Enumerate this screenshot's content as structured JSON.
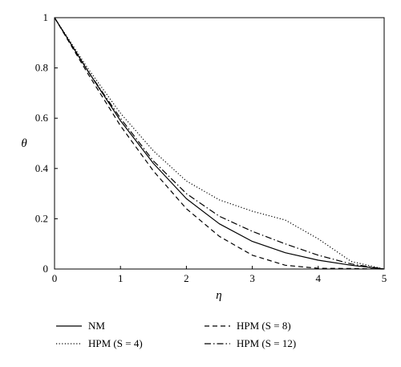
{
  "chart_data": {
    "type": "line",
    "xlabel": "η",
    "ylabel": "θ",
    "xlim": [
      0,
      5
    ],
    "ylim": [
      0,
      1
    ],
    "xticks": [
      "0",
      "1",
      "2",
      "3",
      "4",
      "5"
    ],
    "yticks": [
      "0",
      "0.2",
      "0.4",
      "0.6",
      "0.8",
      "1"
    ],
    "grid": false,
    "legend_position": "below",
    "series": [
      {
        "name": "NM",
        "style": "solid",
        "x": [
          0,
          0.5,
          1,
          1.5,
          2,
          2.5,
          3,
          3.5,
          4,
          4.5,
          5
        ],
        "y": [
          1,
          0.79,
          0.59,
          0.42,
          0.28,
          0.18,
          0.11,
          0.065,
          0.035,
          0.015,
          0
        ]
      },
      {
        "name": "HPM (S = 4)",
        "style": "dotted",
        "x": [
          0,
          0.5,
          1,
          1.5,
          2,
          2.5,
          3,
          3.5,
          4,
          4.5,
          5
        ],
        "y": [
          1,
          0.8,
          0.62,
          0.47,
          0.35,
          0.275,
          0.23,
          0.195,
          0.12,
          0.03,
          0
        ]
      },
      {
        "name": "HPM (S = 8)",
        "style": "dashed",
        "x": [
          0,
          0.5,
          1,
          1.5,
          2,
          2.5,
          3,
          3.5,
          4,
          4.5,
          5
        ],
        "y": [
          1,
          0.78,
          0.57,
          0.39,
          0.24,
          0.13,
          0.055,
          0.015,
          0.003,
          0.002,
          0
        ]
      },
      {
        "name": "HPM (S = 12)",
        "style": "dashdot",
        "x": [
          0,
          0.5,
          1,
          1.5,
          2,
          2.5,
          3,
          3.5,
          4,
          4.5,
          5
        ],
        "y": [
          1,
          0.79,
          0.6,
          0.43,
          0.3,
          0.21,
          0.15,
          0.1,
          0.055,
          0.02,
          0
        ]
      }
    ]
  }
}
